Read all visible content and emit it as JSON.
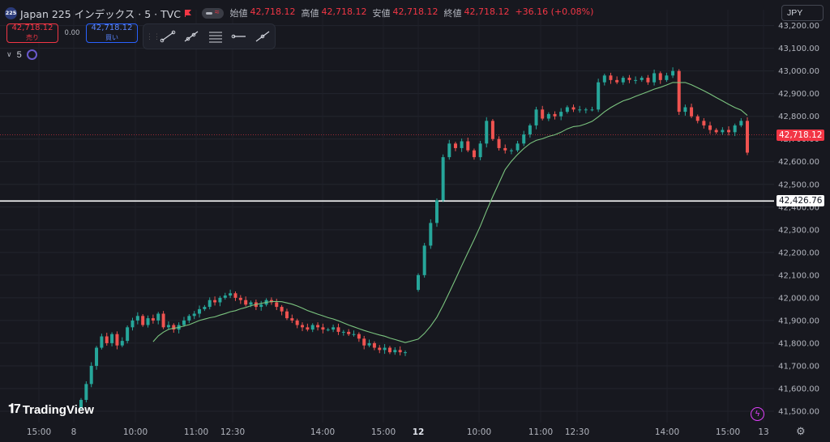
{
  "header": {
    "symbol_logo": "225",
    "title": "Japan 225 インデックス · 5 · TVC",
    "open_label": "始値",
    "open": "42,718.12",
    "high_label": "高値",
    "high": "42,718.12",
    "low_label": "安値",
    "low": "42,718.12",
    "close_label": "終値",
    "close": "42,718.12",
    "change": "+36.16 (+0.08%)"
  },
  "trade": {
    "sell_price": "42,718.12",
    "sell_label": "売り",
    "spread": "0.00",
    "buy_price": "42,718.12",
    "buy_label": "買い"
  },
  "indicator": {
    "value": "5"
  },
  "currency": "JPY",
  "branding": {
    "logo_text": "TradingView"
  },
  "colors": {
    "background": "#17181f",
    "up": "#26a69a",
    "down": "#ef5350",
    "ma": "#7bc47f",
    "last_price": "#f23645",
    "hline": "#ffffff"
  },
  "chart_data": {
    "type": "candlestick",
    "title": "Japan 225",
    "interval": "5",
    "currency": "JPY",
    "y_ticks": [
      41500,
      41600,
      41700,
      41800,
      41900,
      42000,
      42100,
      42200,
      42300,
      42400,
      42500,
      42600,
      42700,
      42800,
      42900,
      43000,
      43100,
      43200
    ],
    "y_tick_labels": [
      "41,500.00",
      "41,600.00",
      "41,700.00",
      "41,800.00",
      "41,900.00",
      "42,000.00",
      "42,100.00",
      "42,200.00",
      "42,300.00",
      "42,400.00",
      "42,500.00",
      "42,600.00",
      "42,700.00",
      "42,800.00",
      "42,900.00",
      "43,000.00",
      "43,100.00",
      "43,200.00"
    ],
    "ylim": [
      41450,
      43270
    ],
    "x_labels": [
      "15:00",
      "8",
      "10:00",
      "11:00",
      "12:30",
      "14:00",
      "15:00",
      "12",
      "10:00",
      "11:00",
      "12:30",
      "14:00",
      "15:00",
      "13"
    ],
    "x_label_bold": [
      false,
      false,
      false,
      false,
      false,
      false,
      false,
      true,
      false,
      false,
      false,
      false,
      false,
      false
    ],
    "last_price": 42718.12,
    "last_price_label": "42,718.12",
    "horizontal_line": 42426.76,
    "horizontal_line_label": "42,426.76",
    "grid": true,
    "moving_average_period": 5,
    "close_series": {
      "day1": [
        41550,
        41620,
        41700,
        41780,
        41830,
        41800,
        41840,
        41790,
        41810,
        41870,
        41900,
        41920,
        41880,
        41910,
        41900,
        41930,
        41870,
        41880,
        41860,
        41880,
        41900,
        41920,
        41930,
        41950,
        41960,
        41990,
        41980,
        42000,
        42010,
        42020,
        42000,
        41990,
        41970,
        41980,
        41960,
        41970,
        41990,
        41980,
        41960,
        41940,
        41910,
        41900,
        41880,
        41870,
        41860,
        41880,
        41870,
        41860,
        41860,
        41870,
        41850,
        41850,
        41840,
        41840,
        41820,
        41790,
        41800,
        41780,
        41770,
        41780,
        41760,
        41770,
        41760,
        41760
      ],
      "day2": [
        42100,
        42230,
        42330,
        42430,
        42620,
        42680,
        42660,
        42690,
        42650,
        42620,
        42680,
        42780,
        42700,
        42660,
        42650,
        42650,
        42680,
        42720,
        42760,
        42830,
        42790,
        42810,
        42800,
        42820,
        42840,
        42830,
        42830,
        42830,
        42830,
        42950,
        42980,
        42960,
        42950,
        42970,
        42960,
        42960,
        42970,
        42950,
        42990,
        42960,
        42980,
        43000,
        42820,
        42840,
        42800,
        42780,
        42760,
        42740,
        42730,
        42740,
        42730,
        42760,
        42780,
        42640
      ]
    }
  }
}
